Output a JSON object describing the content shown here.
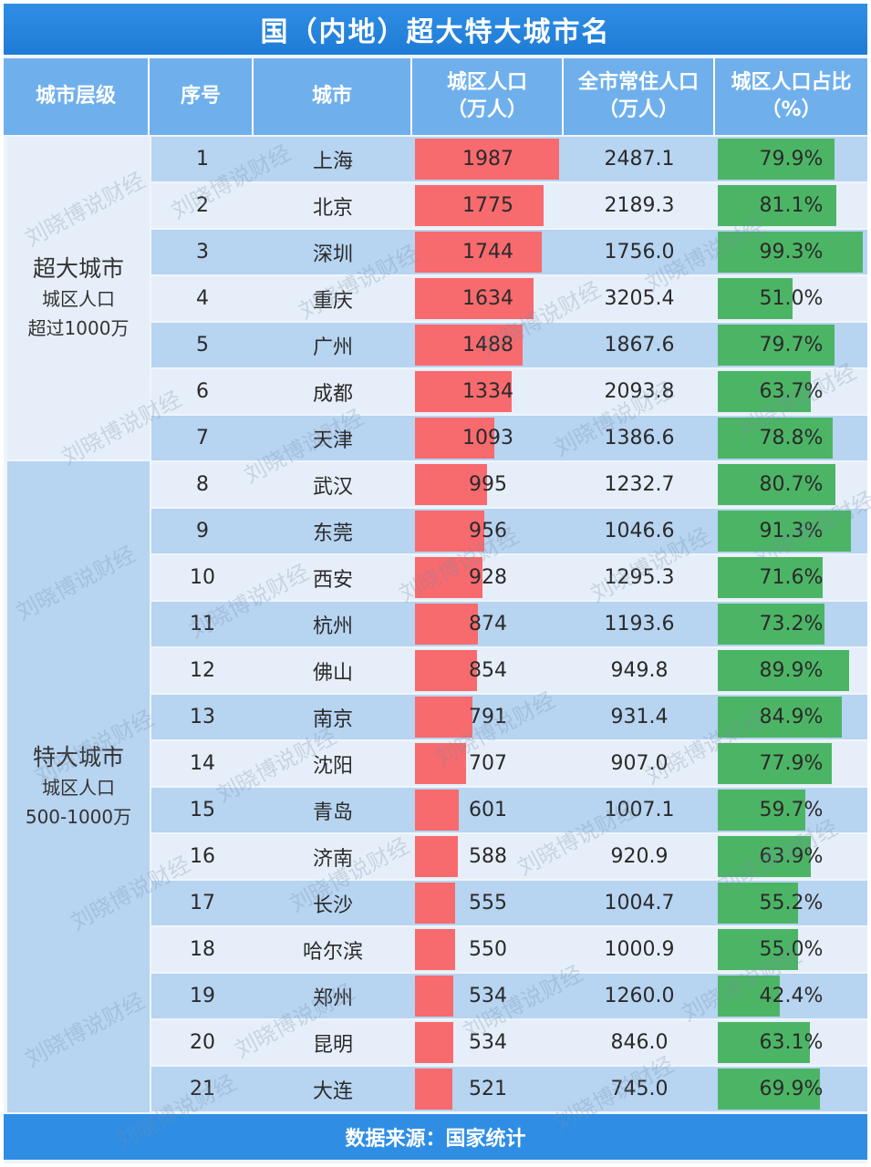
{
  "title": "国（内地）超大特大城市名",
  "headers": {
    "level": "城市层级",
    "rank": "序号",
    "city": "城市",
    "urban_pop": "城区人口（万人）",
    "total_pop": "全市常住人口（万人）",
    "ratio": "城区人口占比（%）"
  },
  "groups": [
    {
      "title": "超大城市",
      "line1": "城区人口",
      "line2": "超过1000万"
    },
    {
      "title": "特大城市",
      "line1": "城区人口",
      "line2": "500-1000万"
    }
  ],
  "footer": "数据来源：国家统计",
  "watermark": "刘晓博说财经",
  "colors": {
    "urban_bar": "#f76a6e",
    "ratio_bar": "#4cb565",
    "header": "#6fb0ec",
    "title_bar": "#2f8ee4"
  },
  "chart_data": {
    "type": "table",
    "columns": [
      "城市层级",
      "序号",
      "城市",
      "城区人口（万人）",
      "全市常住人口（万人）",
      "城区人口占比（%）"
    ],
    "urban_max": 1987,
    "ratio_max": 100,
    "rows": [
      {
        "rank": "1",
        "city": "上海",
        "urban": 1987,
        "urban_label": "1987",
        "total": "2487.1",
        "ratio": 79.9,
        "ratio_label": "79.9%"
      },
      {
        "rank": "2",
        "city": "北京",
        "urban": 1775,
        "urban_label": "1775",
        "total": "2189.3",
        "ratio": 81.1,
        "ratio_label": "81.1%"
      },
      {
        "rank": "3",
        "city": "深圳",
        "urban": 1744,
        "urban_label": "1744",
        "total": "1756.0",
        "ratio": 99.3,
        "ratio_label": "99.3%"
      },
      {
        "rank": "4",
        "city": "重庆",
        "urban": 1634,
        "urban_label": "1634",
        "total": "3205.4",
        "ratio": 51.0,
        "ratio_label": "51.0%"
      },
      {
        "rank": "5",
        "city": "广州",
        "urban": 1488,
        "urban_label": "1488",
        "total": "1867.6",
        "ratio": 79.7,
        "ratio_label": "79.7%"
      },
      {
        "rank": "6",
        "city": "成都",
        "urban": 1334,
        "urban_label": "1334",
        "total": "2093.8",
        "ratio": 63.7,
        "ratio_label": "63.7%"
      },
      {
        "rank": "7",
        "city": "天津",
        "urban": 1093,
        "urban_label": "1093",
        "total": "1386.6",
        "ratio": 78.8,
        "ratio_label": "78.8%"
      },
      {
        "rank": "8",
        "city": "武汉",
        "urban": 995,
        "urban_label": "995",
        "total": "1232.7",
        "ratio": 80.7,
        "ratio_label": "80.7%"
      },
      {
        "rank": "9",
        "city": "东莞",
        "urban": 956,
        "urban_label": "956",
        "total": "1046.6",
        "ratio": 91.3,
        "ratio_label": "91.3%"
      },
      {
        "rank": "10",
        "city": "西安",
        "urban": 928,
        "urban_label": "928",
        "total": "1295.3",
        "ratio": 71.6,
        "ratio_label": "71.6%"
      },
      {
        "rank": "11",
        "city": "杭州",
        "urban": 874,
        "urban_label": "874",
        "total": "1193.6",
        "ratio": 73.2,
        "ratio_label": "73.2%"
      },
      {
        "rank": "12",
        "city": "佛山",
        "urban": 854,
        "urban_label": "854",
        "total": "949.8",
        "ratio": 89.9,
        "ratio_label": "89.9%"
      },
      {
        "rank": "13",
        "city": "南京",
        "urban": 791,
        "urban_label": "791",
        "total": "931.4",
        "ratio": 84.9,
        "ratio_label": "84.9%"
      },
      {
        "rank": "14",
        "city": "沈阳",
        "urban": 707,
        "urban_label": "707",
        "total": "907.0",
        "ratio": 77.9,
        "ratio_label": "77.9%"
      },
      {
        "rank": "15",
        "city": "青岛",
        "urban": 601,
        "urban_label": "601",
        "total": "1007.1",
        "ratio": 59.7,
        "ratio_label": "59.7%"
      },
      {
        "rank": "16",
        "city": "济南",
        "urban": 588,
        "urban_label": "588",
        "total": "920.9",
        "ratio": 63.9,
        "ratio_label": "63.9%"
      },
      {
        "rank": "17",
        "city": "长沙",
        "urban": 555,
        "urban_label": "555",
        "total": "1004.7",
        "ratio": 55.2,
        "ratio_label": "55.2%"
      },
      {
        "rank": "18",
        "city": "哈尔滨",
        "urban": 550,
        "urban_label": "550",
        "total": "1000.9",
        "ratio": 55.0,
        "ratio_label": "55.0%"
      },
      {
        "rank": "19",
        "city": "郑州",
        "urban": 534,
        "urban_label": "534",
        "total": "1260.0",
        "ratio": 42.4,
        "ratio_label": "42.4%"
      },
      {
        "rank": "20",
        "city": "昆明",
        "urban": 534,
        "urban_label": "534",
        "total": "846.0",
        "ratio": 63.1,
        "ratio_label": "63.1%"
      },
      {
        "rank": "21",
        "city": "大连",
        "urban": 521,
        "urban_label": "521",
        "total": "745.0",
        "ratio": 69.9,
        "ratio_label": "69.9%"
      }
    ]
  }
}
